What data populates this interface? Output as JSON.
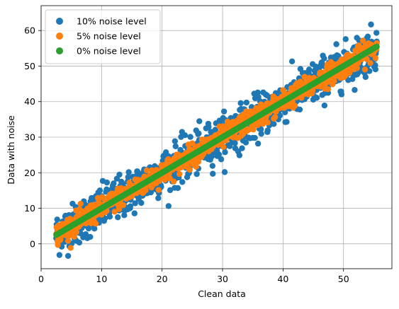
{
  "chart_data": {
    "type": "scatter",
    "title": "",
    "xlabel": "Clean data",
    "ylabel": "Data with noise",
    "xlim": [
      0,
      58
    ],
    "ylim": [
      -7,
      67
    ],
    "xticks": [
      0,
      10,
      20,
      30,
      40,
      50
    ],
    "yticks": [
      0,
      10,
      20,
      30,
      40,
      50,
      60
    ],
    "grid": true,
    "legend_position": "top-left",
    "x_range": [
      2.5,
      55.5
    ],
    "series": [
      {
        "name": "10% noise level",
        "color": "#1f77b4",
        "noise_fraction": 0.1
      },
      {
        "name": "5% noise level",
        "color": "#ff7f0e",
        "noise_fraction": 0.05
      },
      {
        "name": "0% noise level",
        "color": "#2ca02c",
        "noise_fraction": 0.0
      }
    ]
  }
}
